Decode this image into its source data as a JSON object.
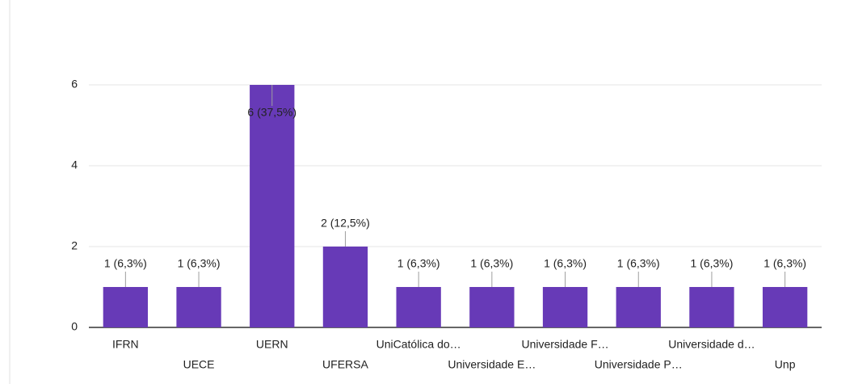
{
  "chart_data": {
    "type": "bar",
    "categories": [
      "IFRN",
      "UECE",
      "UERN",
      "UFERSA",
      "UniCatólica do…",
      "Universidade E…",
      "Universidade F…",
      "Universidade P…",
      "Universidade d…",
      "Unp"
    ],
    "values": [
      1,
      1,
      6,
      2,
      1,
      1,
      1,
      1,
      1,
      1
    ],
    "value_labels": [
      "1 (6,3%)",
      "1 (6,3%)",
      "6 (37,5%)",
      "2 (12,5%)",
      "1 (6,3%)",
      "1 (6,3%)",
      "1 (6,3%)",
      "1 (6,3%)",
      "1 (6,3%)",
      "1 (6,3%)"
    ],
    "color": "#673ab7",
    "ylim": [
      0,
      6
    ],
    "yticks": [
      0,
      2,
      4,
      6
    ],
    "grid": true
  }
}
